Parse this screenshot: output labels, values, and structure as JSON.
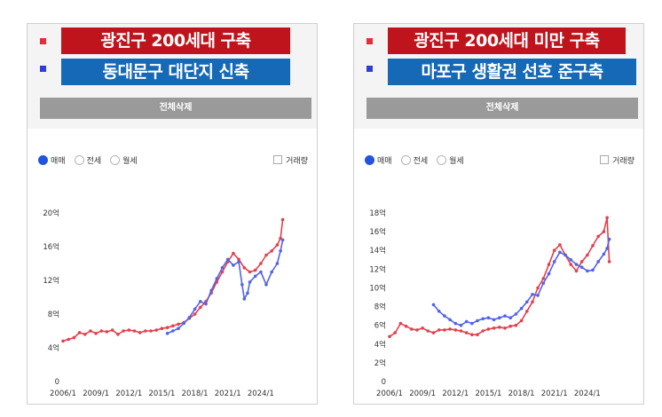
{
  "panels": [
    {
      "id": "left",
      "legend": [
        {
          "label": "광진구 200세대 구축",
          "color": "#c0141c"
        },
        {
          "label": "동대문구 대단지 신축",
          "color": "#1669b6"
        }
      ],
      "delete_label": "전체삭제",
      "radios": [
        {
          "label": "매매",
          "selected": true
        },
        {
          "label": "전세",
          "selected": false
        },
        {
          "label": "월세",
          "selected": false
        }
      ],
      "volume_label": "거래량"
    },
    {
      "id": "right",
      "legend": [
        {
          "label": "광진구 200세대 미만 구축",
          "color": "#c0141c"
        },
        {
          "label": "마포구 생활권 선호 준구축",
          "color": "#1669b6"
        }
      ],
      "delete_label": "전체삭제",
      "radios": [
        {
          "label": "매매",
          "selected": true
        },
        {
          "label": "전세",
          "selected": false
        },
        {
          "label": "월세",
          "selected": false
        }
      ],
      "volume_label": "거래량"
    }
  ],
  "chart_data": [
    {
      "type": "line",
      "xlabel": "",
      "ylabel": "",
      "x_ticks": [
        "2006/1",
        "2009/1",
        "2012/1",
        "2015/1",
        "2018/1",
        "2021/1",
        "2024/1"
      ],
      "y_ticks": [
        "0",
        "4억",
        "8억",
        "12억",
        "16억",
        "20억"
      ],
      "ylim": [
        0,
        20
      ],
      "xlim": [
        2006.0,
        2027.0
      ],
      "grid": false,
      "series_colors": [
        "#e3404c",
        "#5263e6"
      ],
      "series": [
        {
          "x": [
            2006.0,
            2006.5,
            2007.0,
            2007.5,
            2008.0,
            2008.5,
            2009.0,
            2009.5,
            2010.0,
            2010.5,
            2011.0,
            2011.5,
            2012.0,
            2012.5,
            2013.0,
            2013.5,
            2014.0,
            2014.5,
            2015.0,
            2015.5,
            2016.0,
            2016.5,
            2017.0,
            2017.5,
            2018.0,
            2018.5,
            2019.0,
            2019.5,
            2020.0,
            2020.5,
            2021.0,
            2021.5,
            2022.0,
            2022.5,
            2023.0,
            2023.5,
            2024.0,
            2024.5,
            2025.0,
            2025.5,
            2025.8,
            2026.0
          ],
          "values": [
            4.8,
            5.0,
            5.2,
            5.8,
            5.6,
            6.0,
            5.7,
            6.0,
            5.9,
            6.1,
            5.6,
            6.0,
            6.1,
            6.0,
            5.8,
            6.0,
            6.0,
            6.1,
            6.3,
            6.4,
            6.6,
            6.8,
            7.0,
            7.5,
            8.0,
            8.8,
            9.5,
            10.5,
            11.8,
            13.0,
            14.2,
            15.2,
            14.5,
            13.5,
            13.0,
            13.2,
            14.0,
            15.0,
            15.5,
            16.2,
            17.0,
            19.2
          ]
        },
        {
          "x": [
            2015.5,
            2016.0,
            2016.5,
            2017.0,
            2017.5,
            2018.0,
            2018.5,
            2019.0,
            2019.5,
            2020.0,
            2020.5,
            2021.0,
            2021.5,
            2022.0,
            2022.3,
            2022.5,
            2022.8,
            2023.0,
            2023.5,
            2024.0,
            2024.5,
            2025.0,
            2025.5,
            2025.8,
            2026.0
          ],
          "values": [
            5.7,
            6.0,
            6.3,
            6.9,
            7.6,
            8.6,
            9.5,
            9.2,
            10.8,
            12.2,
            13.5,
            14.5,
            13.8,
            14.2,
            11.5,
            9.8,
            10.5,
            11.8,
            12.5,
            13.0,
            11.5,
            13.0,
            14.0,
            15.5,
            16.8
          ]
        }
      ]
    },
    {
      "type": "line",
      "xlabel": "",
      "ylabel": "",
      "x_ticks": [
        "2006/1",
        "2009/1",
        "2012/1",
        "2015/1",
        "2018/1",
        "2021/1",
        "2024/1"
      ],
      "y_ticks": [
        "0",
        "2억",
        "4억",
        "6억",
        "8억",
        "10억",
        "12억",
        "14억",
        "16억",
        "18억"
      ],
      "ylim": [
        0,
        18
      ],
      "xlim": [
        2006.0,
        2027.0
      ],
      "grid": false,
      "series_colors": [
        "#e3404c",
        "#5263e6"
      ],
      "series": [
        {
          "x": [
            2006.0,
            2006.5,
            2007.0,
            2007.5,
            2008.0,
            2008.5,
            2009.0,
            2009.5,
            2010.0,
            2010.5,
            2011.0,
            2011.5,
            2012.0,
            2012.5,
            2013.0,
            2013.5,
            2014.0,
            2014.5,
            2015.0,
            2015.5,
            2016.0,
            2016.5,
            2017.0,
            2017.5,
            2018.0,
            2018.5,
            2019.0,
            2019.5,
            2020.0,
            2020.5,
            2021.0,
            2021.5,
            2022.0,
            2022.5,
            2023.0,
            2023.5,
            2024.0,
            2024.5,
            2025.0,
            2025.5,
            2025.8,
            2026.0
          ],
          "values": [
            4.8,
            5.2,
            6.2,
            5.9,
            5.6,
            5.5,
            5.7,
            5.4,
            5.2,
            5.5,
            5.5,
            5.6,
            5.5,
            5.4,
            5.2,
            5.0,
            5.0,
            5.4,
            5.6,
            5.7,
            5.8,
            5.7,
            5.9,
            6.0,
            6.5,
            7.5,
            8.5,
            10.0,
            11.0,
            12.5,
            14.0,
            14.6,
            13.5,
            12.5,
            11.8,
            12.8,
            13.5,
            14.5,
            15.5,
            16.0,
            17.5,
            12.8
          ]
        },
        {
          "x": [
            2010.0,
            2010.5,
            2011.0,
            2011.5,
            2012.0,
            2012.5,
            2013.0,
            2013.5,
            2014.0,
            2014.5,
            2015.0,
            2015.5,
            2016.0,
            2016.5,
            2017.0,
            2017.5,
            2018.0,
            2018.5,
            2019.0,
            2019.5,
            2020.0,
            2020.5,
            2021.0,
            2021.5,
            2022.0,
            2022.5,
            2023.0,
            2023.5,
            2024.0,
            2024.5,
            2025.0,
            2025.5,
            2025.8,
            2026.0
          ],
          "values": [
            8.2,
            7.5,
            7.0,
            6.6,
            6.2,
            6.0,
            6.4,
            6.2,
            6.5,
            6.7,
            6.8,
            6.6,
            6.8,
            7.0,
            6.8,
            7.2,
            7.8,
            8.5,
            9.3,
            9.2,
            10.5,
            11.5,
            12.8,
            13.8,
            13.5,
            13.0,
            12.5,
            12.2,
            11.8,
            11.9,
            12.8,
            13.6,
            14.2,
            15.2
          ]
        }
      ]
    }
  ]
}
